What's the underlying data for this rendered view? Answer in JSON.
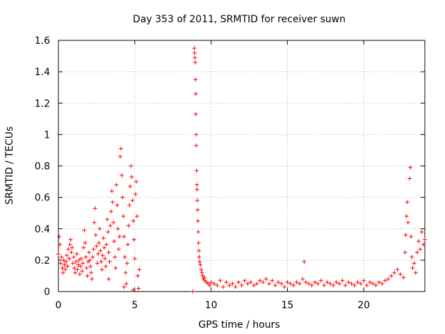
{
  "chart_data": {
    "type": "scatter",
    "title": "Day 353 of 2011, SRMTID for receiver suwn",
    "xlabel": "GPS time / hours",
    "ylabel": "SRMTID / TECUs",
    "xlim": [
      0,
      24
    ],
    "ylim": [
      0,
      1.6
    ],
    "xticks": [
      0,
      5,
      10,
      15,
      20
    ],
    "xtick_labels": [
      "0",
      "5",
      "10",
      "15",
      "20"
    ],
    "yticks": [
      0,
      0.2,
      0.4,
      0.6,
      0.8,
      1,
      1.2,
      1.4,
      1.6
    ],
    "ytick_labels": [
      "0",
      "0.2",
      "0.4",
      "0.6",
      "0.8",
      "1",
      "1.2",
      "1.4",
      "1.6"
    ],
    "grid": true,
    "marker": "+",
    "marker_color": "#ff0000",
    "series": [
      {
        "name": "suwn",
        "points": [
          [
            0.0,
            0.24
          ],
          [
            0.05,
            0.35
          ],
          [
            0.1,
            0.3
          ],
          [
            0.15,
            0.18
          ],
          [
            0.2,
            0.22
          ],
          [
            0.25,
            0.15
          ],
          [
            0.3,
            0.12
          ],
          [
            0.35,
            0.2
          ],
          [
            0.4,
            0.17
          ],
          [
            0.45,
            0.14
          ],
          [
            0.5,
            0.19
          ],
          [
            0.55,
            0.23
          ],
          [
            0.6,
            0.16
          ],
          [
            0.65,
            0.27
          ],
          [
            0.7,
            0.21
          ],
          [
            0.75,
            0.3
          ],
          [
            0.8,
            0.33
          ],
          [
            0.85,
            0.25
          ],
          [
            0.9,
            0.28
          ],
          [
            0.95,
            0.18
          ],
          [
            1.0,
            0.22
          ],
          [
            1.05,
            0.15
          ],
          [
            1.1,
            0.12
          ],
          [
            1.15,
            0.19
          ],
          [
            1.2,
            0.24
          ],
          [
            1.25,
            0.14
          ],
          [
            1.3,
            0.17
          ],
          [
            1.35,
            0.2
          ],
          [
            1.4,
            0.11
          ],
          [
            1.45,
            0.16
          ],
          [
            1.5,
            0.21
          ],
          [
            1.55,
            0.13
          ],
          [
            1.6,
            0.18
          ],
          [
            1.65,
            0.28
          ],
          [
            1.7,
            0.39
          ],
          [
            1.75,
            0.31
          ],
          [
            1.8,
            0.22
          ],
          [
            1.85,
            0.15
          ],
          [
            1.9,
            0.1
          ],
          [
            1.95,
            0.19
          ],
          [
            2.0,
            0.25
          ],
          [
            2.05,
            0.2
          ],
          [
            2.1,
            0.16
          ],
          [
            2.15,
            0.12
          ],
          [
            2.2,
            0.08
          ],
          [
            2.25,
            0.22
          ],
          [
            2.3,
            0.27
          ],
          [
            2.35,
            0.44
          ],
          [
            2.4,
            0.53
          ],
          [
            2.45,
            0.36
          ],
          [
            2.5,
            0.29
          ],
          [
            2.55,
            0.18
          ],
          [
            2.6,
            0.24
          ],
          [
            2.65,
            0.31
          ],
          [
            2.7,
            0.4
          ],
          [
            2.75,
            0.26
          ],
          [
            2.8,
            0.19
          ],
          [
            2.85,
            0.14
          ],
          [
            2.9,
            0.23
          ],
          [
            2.95,
            0.34
          ],
          [
            3.0,
            0.28
          ],
          [
            3.05,
            0.21
          ],
          [
            3.1,
            0.16
          ],
          [
            3.15,
            0.3
          ],
          [
            3.2,
            0.46
          ],
          [
            3.25,
            0.38
          ],
          [
            3.3,
            0.25
          ],
          [
            3.35,
            0.19
          ],
          [
            3.4,
            0.42
          ],
          [
            3.45,
            0.51
          ],
          [
            3.5,
            0.64
          ],
          [
            3.55,
            0.57
          ],
          [
            3.6,
            0.44
          ],
          [
            3.65,
            0.32
          ],
          [
            3.7,
            0.22
          ],
          [
            3.75,
            0.15
          ],
          [
            3.8,
            0.68
          ],
          [
            3.85,
            0.55
          ],
          [
            3.9,
            0.4
          ],
          [
            3.95,
            0.27
          ],
          [
            4.0,
            0.35
          ],
          [
            4.05,
            0.86
          ],
          [
            4.1,
            0.91
          ],
          [
            4.15,
            0.74
          ],
          [
            4.2,
            0.6
          ],
          [
            4.25,
            0.48
          ],
          [
            4.3,
            0.35
          ],
          [
            4.35,
            0.22
          ],
          [
            4.4,
            0.12
          ],
          [
            4.45,
            0.05
          ],
          [
            4.5,
            0.18
          ],
          [
            4.55,
            0.3
          ],
          [
            4.6,
            0.42
          ],
          [
            4.65,
            0.55
          ],
          [
            4.7,
            0.67
          ],
          [
            4.75,
            0.8
          ],
          [
            4.8,
            0.73
          ],
          [
            4.85,
            0.58
          ],
          [
            4.9,
            0.45
          ],
          [
            4.95,
            0.33
          ],
          [
            5.0,
            0.21
          ],
          [
            5.05,
            0.62
          ],
          [
            5.1,
            0.7
          ],
          [
            5.15,
            0.48
          ],
          [
            5.2,
            0.1
          ],
          [
            5.25,
            0.02
          ],
          [
            5.3,
            0.14
          ],
          [
            4.3,
            0.03
          ],
          [
            4.9,
            0.01
          ],
          [
            3.3,
            0.08
          ],
          [
            8.8,
            0.0
          ],
          [
            8.9,
            1.55
          ],
          [
            8.92,
            1.52
          ],
          [
            8.94,
            1.49
          ],
          [
            8.96,
            1.46
          ],
          [
            8.98,
            1.35
          ],
          [
            9.0,
            1.26
          ],
          [
            9.0,
            1.13
          ],
          [
            9.02,
            1.0
          ],
          [
            9.03,
            0.93
          ],
          [
            9.05,
            0.77
          ],
          [
            9.07,
            0.68
          ],
          [
            9.08,
            0.65
          ],
          [
            9.1,
            0.58
          ],
          [
            9.12,
            0.52
          ],
          [
            9.14,
            0.45
          ],
          [
            9.16,
            0.38
          ],
          [
            9.18,
            0.31
          ],
          [
            9.2,
            0.26
          ],
          [
            9.22,
            0.22
          ],
          [
            9.25,
            0.19
          ],
          [
            9.3,
            0.17
          ],
          [
            9.35,
            0.14
          ],
          [
            9.4,
            0.12
          ],
          [
            9.45,
            0.1
          ],
          [
            9.5,
            0.08
          ],
          [
            9.55,
            0.09
          ],
          [
            9.6,
            0.07
          ],
          [
            9.7,
            0.06
          ],
          [
            9.8,
            0.05
          ],
          [
            9.9,
            0.04
          ],
          [
            10.0,
            0.06
          ],
          [
            10.2,
            0.05
          ],
          [
            10.4,
            0.04
          ],
          [
            10.6,
            0.07
          ],
          [
            10.8,
            0.03
          ],
          [
            11.0,
            0.06
          ],
          [
            11.2,
            0.04
          ],
          [
            11.4,
            0.05
          ],
          [
            11.6,
            0.03
          ],
          [
            11.8,
            0.06
          ],
          [
            12.0,
            0.04
          ],
          [
            12.2,
            0.07
          ],
          [
            12.4,
            0.05
          ],
          [
            12.6,
            0.06
          ],
          [
            12.8,
            0.04
          ],
          [
            13.0,
            0.05
          ],
          [
            13.2,
            0.07
          ],
          [
            13.4,
            0.06
          ],
          [
            13.6,
            0.08
          ],
          [
            13.8,
            0.05
          ],
          [
            14.0,
            0.07
          ],
          [
            14.2,
            0.04
          ],
          [
            14.4,
            0.06
          ],
          [
            14.6,
            0.05
          ],
          [
            14.8,
            0.03
          ],
          [
            15.0,
            0.06
          ],
          [
            15.2,
            0.05
          ],
          [
            15.4,
            0.04
          ],
          [
            15.6,
            0.06
          ],
          [
            15.8,
            0.05
          ],
          [
            16.0,
            0.08
          ],
          [
            16.1,
            0.19
          ],
          [
            16.2,
            0.06
          ],
          [
            16.4,
            0.05
          ],
          [
            16.6,
            0.04
          ],
          [
            16.8,
            0.06
          ],
          [
            17.0,
            0.05
          ],
          [
            17.2,
            0.07
          ],
          [
            17.4,
            0.04
          ],
          [
            17.6,
            0.06
          ],
          [
            17.8,
            0.05
          ],
          [
            18.0,
            0.04
          ],
          [
            18.2,
            0.06
          ],
          [
            18.4,
            0.05
          ],
          [
            18.6,
            0.07
          ],
          [
            18.8,
            0.04
          ],
          [
            19.0,
            0.06
          ],
          [
            19.2,
            0.05
          ],
          [
            19.4,
            0.04
          ],
          [
            19.6,
            0.06
          ],
          [
            19.8,
            0.05
          ],
          [
            20.0,
            0.07
          ],
          [
            20.2,
            0.04
          ],
          [
            20.4,
            0.06
          ],
          [
            20.6,
            0.05
          ],
          [
            20.8,
            0.04
          ],
          [
            21.0,
            0.06
          ],
          [
            21.2,
            0.05
          ],
          [
            21.4,
            0.07
          ],
          [
            21.6,
            0.08
          ],
          [
            21.8,
            0.1
          ],
          [
            22.0,
            0.12
          ],
          [
            22.2,
            0.14
          ],
          [
            22.4,
            0.11
          ],
          [
            22.6,
            0.09
          ],
          [
            22.7,
            0.25
          ],
          [
            22.75,
            0.36
          ],
          [
            22.8,
            0.48
          ],
          [
            22.85,
            0.57
          ],
          [
            22.9,
            0.44
          ],
          [
            23.0,
            0.72
          ],
          [
            23.05,
            0.79
          ],
          [
            23.1,
            0.35
          ],
          [
            23.15,
            0.22
          ],
          [
            23.2,
            0.15
          ],
          [
            23.3,
            0.18
          ],
          [
            23.4,
            0.12
          ],
          [
            23.5,
            0.25
          ],
          [
            23.6,
            0.32
          ],
          [
            23.7,
            0.27
          ],
          [
            23.8,
            0.38
          ],
          [
            23.9,
            0.3
          ],
          [
            24.0,
            0.33
          ]
        ]
      }
    ]
  }
}
